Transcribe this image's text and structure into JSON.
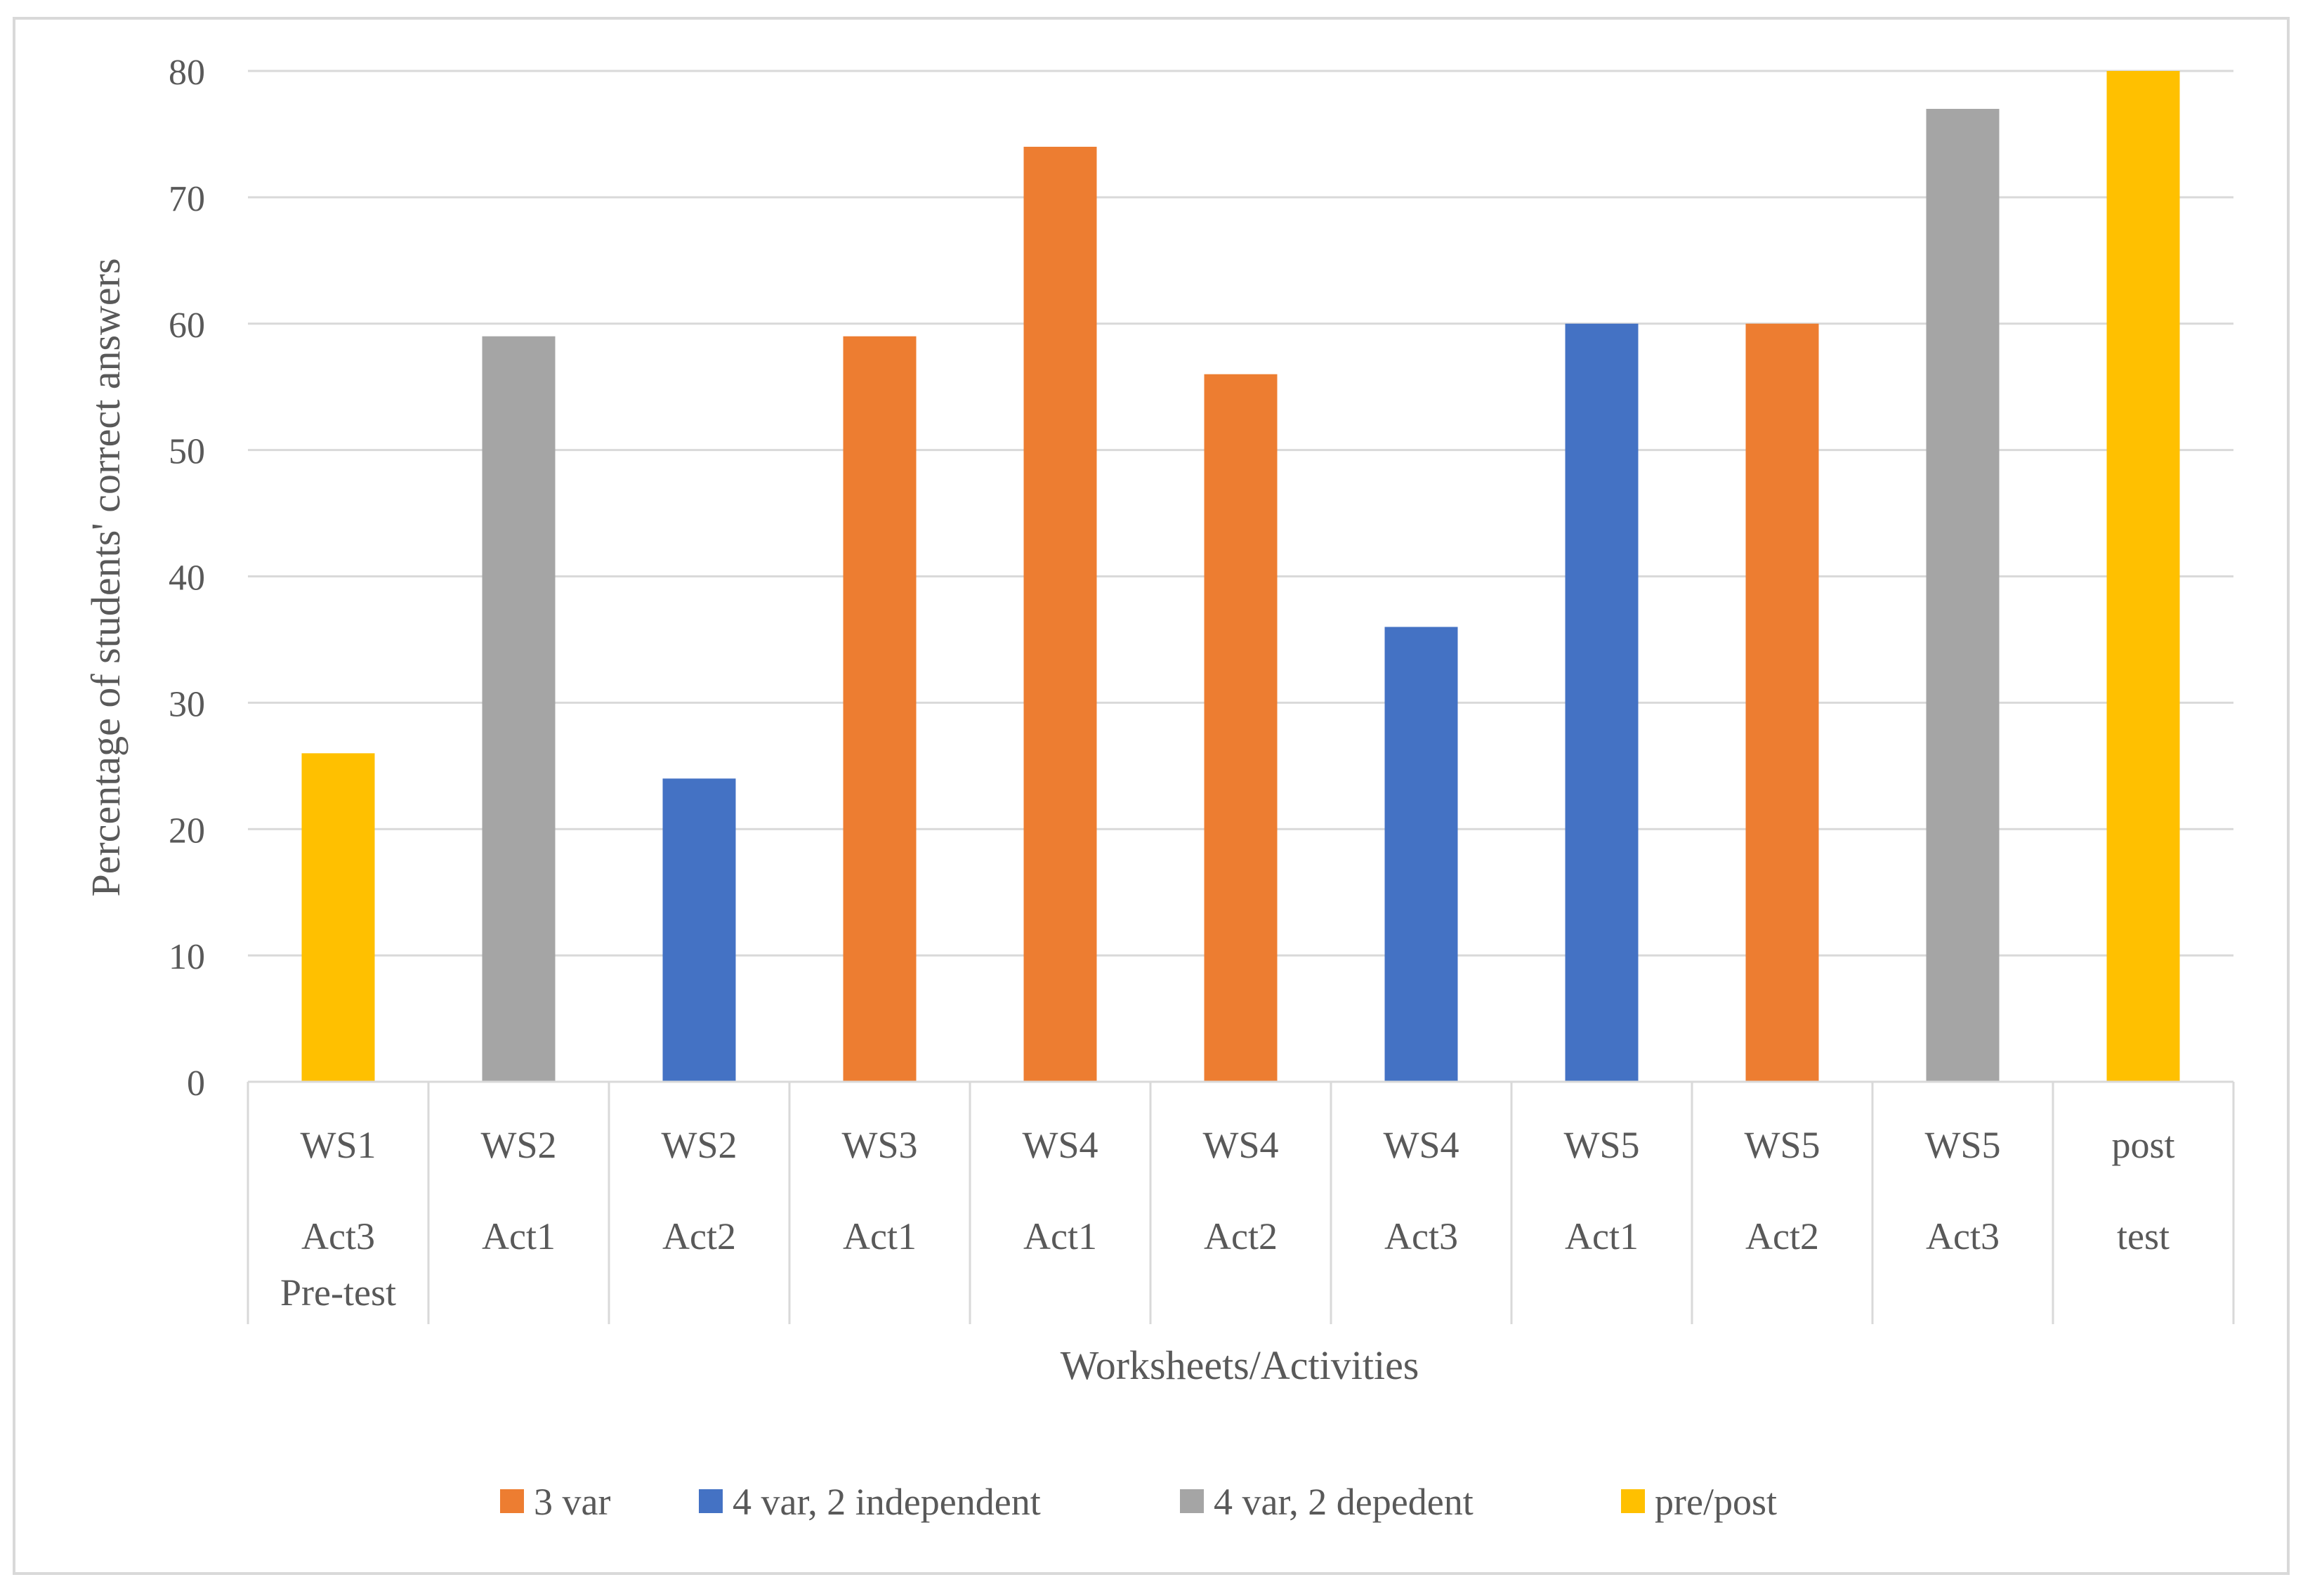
{
  "chart_data": {
    "type": "bar",
    "title": "",
    "xlabel": "Worksheets/Activities",
    "ylabel": "Percentage of students' correct answers",
    "ylim": [
      0,
      80
    ],
    "yticks": [
      0,
      10,
      20,
      30,
      40,
      50,
      60,
      70,
      80
    ],
    "grid": true,
    "legend_position": "bottom",
    "categories": [
      {
        "lines": [
          "WS1",
          "Act3",
          "Pre-test"
        ],
        "value": 26,
        "group": "pre/post"
      },
      {
        "lines": [
          "WS2",
          "Act1"
        ],
        "value": 59,
        "group": "4 var, 2 depedent"
      },
      {
        "lines": [
          "WS2",
          "Act2"
        ],
        "value": 24,
        "group": "4 var, 2 independent"
      },
      {
        "lines": [
          "WS3",
          "Act1"
        ],
        "value": 59,
        "group": "3 var"
      },
      {
        "lines": [
          "WS4",
          "Act1"
        ],
        "value": 74,
        "group": "3 var"
      },
      {
        "lines": [
          "WS4",
          "Act2"
        ],
        "value": 56,
        "group": "3 var"
      },
      {
        "lines": [
          "WS4",
          "Act3"
        ],
        "value": 36,
        "group": "4 var, 2 independent"
      },
      {
        "lines": [
          "WS5",
          "Act1"
        ],
        "value": 60,
        "group": "4 var, 2 independent"
      },
      {
        "lines": [
          "WS5",
          "Act2"
        ],
        "value": 60,
        "group": "3 var"
      },
      {
        "lines": [
          "WS5",
          "Act3"
        ],
        "value": 77,
        "group": "4 var, 2 depedent"
      },
      {
        "lines": [
          "post",
          "test"
        ],
        "value": 80,
        "group": "pre/post"
      }
    ],
    "legend": [
      {
        "label": "3 var",
        "color": "#ED7D31"
      },
      {
        "label": "4 var, 2 independent",
        "color": "#4472C4"
      },
      {
        "label": "4 var, 2 depedent",
        "color": "#A5A5A5"
      },
      {
        "label": "pre/post",
        "color": "#FFC000"
      }
    ]
  }
}
